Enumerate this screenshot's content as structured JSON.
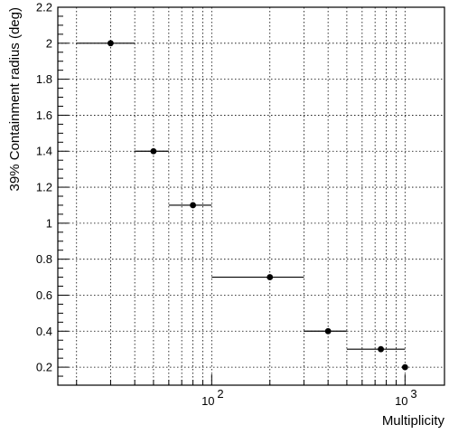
{
  "chart_data": {
    "type": "scatter",
    "title": "",
    "xlabel": "Multiplicity",
    "ylabel": "39% Containment radius (deg)",
    "x_scale": "log",
    "xlim": [
      16,
      1600
    ],
    "ylim": [
      0.1,
      2.2
    ],
    "grid": true,
    "x_ticks": [
      {
        "value": 100,
        "base": "10",
        "exp": "2"
      },
      {
        "value": 1000,
        "base": "10",
        "exp": "3"
      }
    ],
    "y_ticks": [
      0.2,
      0.4,
      0.6,
      0.8,
      1,
      1.2,
      1.4,
      1.6,
      1.8,
      2,
      2.2
    ],
    "y_tick_labels": [
      "0.2",
      "0.4",
      "0.6",
      "0.8",
      "1",
      "1.2",
      "1.4",
      "1.6",
      "1.8",
      "2",
      "2.2"
    ],
    "points": [
      {
        "x": 30,
        "y": 2.0,
        "xerr_low": 20,
        "xerr_high": 40
      },
      {
        "x": 50,
        "y": 1.4,
        "xerr_low": 40,
        "xerr_high": 60
      },
      {
        "x": 80,
        "y": 1.1,
        "xerr_low": 60,
        "xerr_high": 100
      },
      {
        "x": 200,
        "y": 0.7,
        "xerr_low": 100,
        "xerr_high": 300
      },
      {
        "x": 400,
        "y": 0.4,
        "xerr_low": 300,
        "xerr_high": 500
      },
      {
        "x": 750,
        "y": 0.3,
        "xerr_low": 500,
        "xerr_high": 1000
      },
      {
        "x": 1000,
        "y": 0.2,
        "xerr_low": 1000,
        "xerr_high": 1000
      }
    ]
  }
}
